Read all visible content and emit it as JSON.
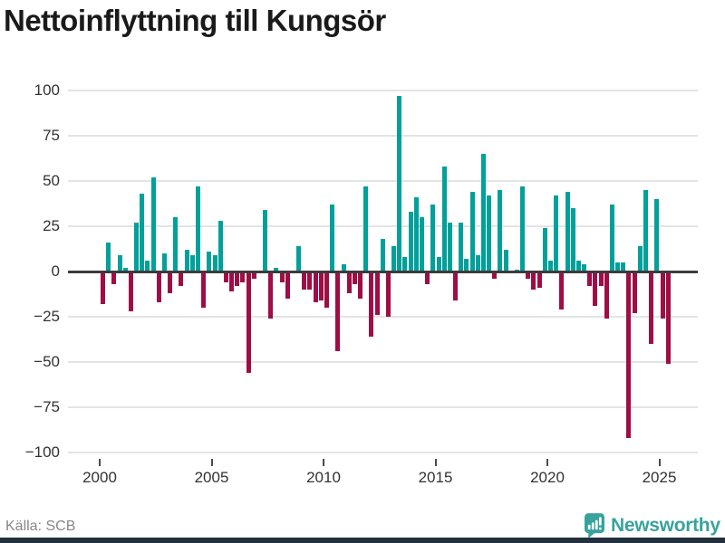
{
  "title": "Nettoinflyttning till Kungsör",
  "footer": {
    "source": "Källa: SCB",
    "brand": "Newsworthy"
  },
  "colors": {
    "positive": "#00a09b",
    "negative": "#9f0d46",
    "brand_teal": "#38a39c",
    "zero_line": "#3b3b3b",
    "gridline": "#e4e4e4",
    "bottom_bar": "#22303e"
  },
  "chart_data": {
    "type": "bar",
    "title": "Nettoinflyttning till Kungsör",
    "frequency": "quarterly",
    "start_period": "2000-Q1",
    "end_period": "2025-Q2",
    "values": [
      -18,
      16,
      -7,
      9,
      2,
      -22,
      27,
      43,
      6,
      52,
      -17,
      10,
      -12,
      30,
      -8,
      12,
      9,
      47,
      -20,
      11,
      9,
      28,
      -6,
      -11,
      -8,
      -6,
      -56,
      -4,
      0,
      34,
      -26,
      2,
      -6,
      -15,
      0,
      14,
      -10,
      -10,
      -17,
      -16,
      -20,
      37,
      -44,
      4,
      -12,
      -7,
      -15,
      47,
      -36,
      -24,
      18,
      -25,
      14,
      97,
      8,
      33,
      41,
      30,
      -7,
      37,
      8,
      58,
      27,
      -16,
      27,
      7,
      44,
      9,
      65,
      42,
      -4,
      45,
      12,
      0,
      1,
      47,
      -4,
      -10,
      -9,
      24,
      6,
      42,
      -21,
      44,
      35,
      6,
      4,
      -8,
      -19,
      -8,
      -26,
      37,
      5,
      5,
      -92,
      -23,
      14,
      45,
      -40,
      40,
      -26,
      -51
    ],
    "xticks": [
      2000,
      2005,
      2010,
      2015,
      2020,
      2025
    ],
    "yticks": [
      100,
      75,
      50,
      25,
      0,
      -25,
      -50,
      -75,
      -100
    ],
    "ylim": [
      -100,
      100
    ],
    "grid": true,
    "legend": "none",
    "positive_color": "#00a09b",
    "negative_color": "#9f0d46"
  }
}
